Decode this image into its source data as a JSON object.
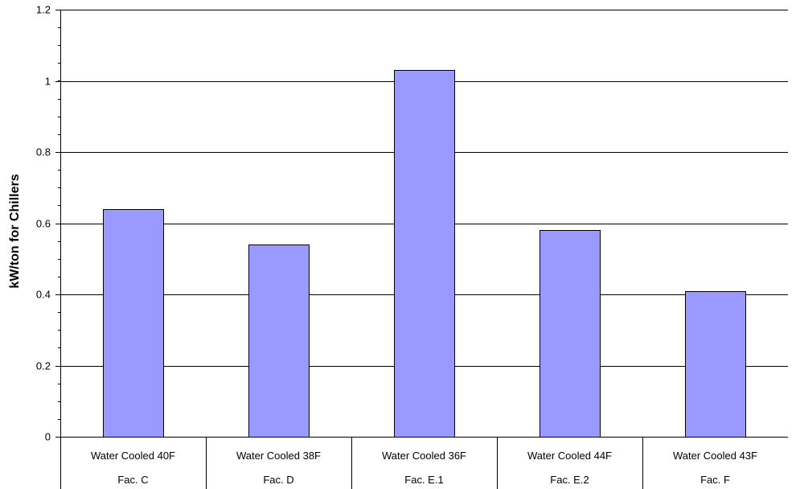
{
  "chart_data": {
    "type": "bar",
    "title": "",
    "xlabel": "",
    "ylabel": "kW/ton for Chillers",
    "ylim": [
      0,
      1.2
    ],
    "yticks": [
      0,
      0.2,
      0.4,
      0.6,
      0.8,
      1,
      1.2
    ],
    "ytick_labels": [
      "0",
      "0.2",
      "0.4",
      "0.6",
      "0.8",
      "1",
      "1.2"
    ],
    "grid": true,
    "legend": "none",
    "bar_color": "#9999FF",
    "categories": [
      {
        "line1": "Water Cooled 40F",
        "line2": "Fac. C"
      },
      {
        "line1": "Water Cooled 38F",
        "line2": "Fac. D"
      },
      {
        "line1": "Water Cooled 36F",
        "line2": "Fac. E.1"
      },
      {
        "line1": "Water Cooled 44F",
        "line2": "Fac. E.2"
      },
      {
        "line1": "Water Cooled 43F",
        "line2": "Fac. F"
      }
    ],
    "values": [
      0.64,
      0.54,
      1.03,
      0.58,
      0.41
    ]
  }
}
